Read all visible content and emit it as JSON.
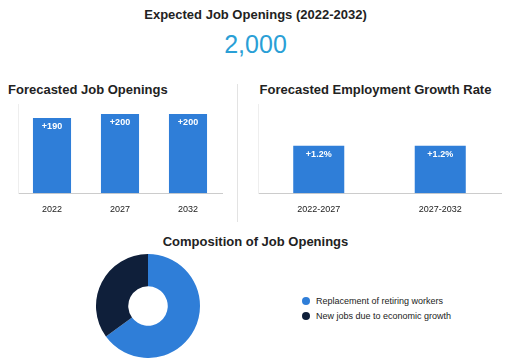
{
  "headline": {
    "title": "Expected Job Openings (2022-2032)",
    "value": {
      "value": 2000,
      "label": "2,000"
    }
  },
  "chart_data": [
    {
      "type": "bar",
      "title": "Forecasted Job Openings",
      "categories": [
        "2022",
        "2027",
        "2032"
      ],
      "values": [
        190,
        200,
        200
      ],
      "value_labels": [
        "+190",
        "+200",
        "+200"
      ],
      "data_labels": true,
      "color": "#2f7ed8",
      "ylim": [
        0,
        225
      ],
      "grid": false,
      "tick_labels": "x"
    },
    {
      "type": "bar",
      "title": "Forecasted Employment Growth Rate",
      "categories": [
        "2022-2027",
        "2027-2032"
      ],
      "values": [
        1.2,
        1.2
      ],
      "value_labels": [
        "+1.2%",
        "+1.2%"
      ],
      "data_labels": true,
      "color": "#2f7ed8",
      "ylim": [
        0,
        2.25
      ],
      "grid": false,
      "tick_labels": "x"
    },
    {
      "type": "doughnut",
      "title": "Composition of Job Openings",
      "categories": [
        "Replacement of retiring workers",
        "New jobs due to economic growth"
      ],
      "values": [
        65,
        35
      ],
      "colors": [
        "#2f7ed8",
        "#0f1f3a"
      ],
      "legend": "right"
    }
  ]
}
